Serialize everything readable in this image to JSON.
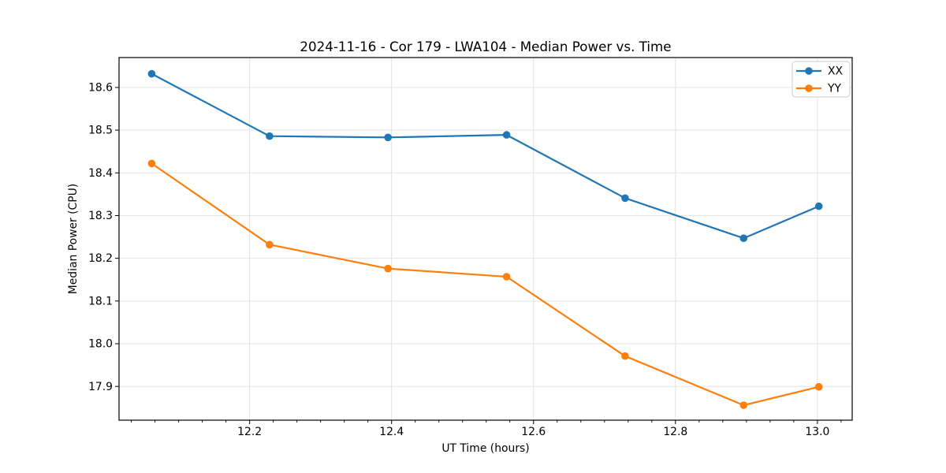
{
  "chart_data": {
    "type": "line",
    "title": "2024-11-16 - Cor 179 - LWA104 - Median Power vs. Time",
    "xlabel": "UT Time (hours)",
    "ylabel": "Median Power (CPU)",
    "x": [
      12.062,
      12.228,
      12.395,
      12.562,
      12.729,
      12.896,
      13.002
    ],
    "series": [
      {
        "name": "XX",
        "color": "#1f77b4",
        "marker": "circle",
        "values": [
          18.632,
          18.486,
          18.483,
          18.489,
          18.341,
          18.247,
          18.322
        ]
      },
      {
        "name": "YY",
        "color": "#ff7f0e",
        "marker": "circle",
        "values": [
          18.422,
          18.232,
          18.176,
          18.157,
          17.971,
          17.856,
          17.899
        ]
      }
    ],
    "xlim": [
      12.016,
      13.049
    ],
    "ylim": [
      17.821,
      18.67
    ],
    "xticks": [
      12.2,
      12.4,
      12.6,
      12.8,
      13.0
    ],
    "yticks": [
      17.9,
      18.0,
      18.1,
      18.2,
      18.3,
      18.4,
      18.5,
      18.6
    ],
    "x_minor_step": 0.0333333,
    "tick_decimals": 1,
    "grid": true,
    "grid_color": "#e3e3e3",
    "spine_color": "#000000",
    "legend_position": "top-right"
  }
}
